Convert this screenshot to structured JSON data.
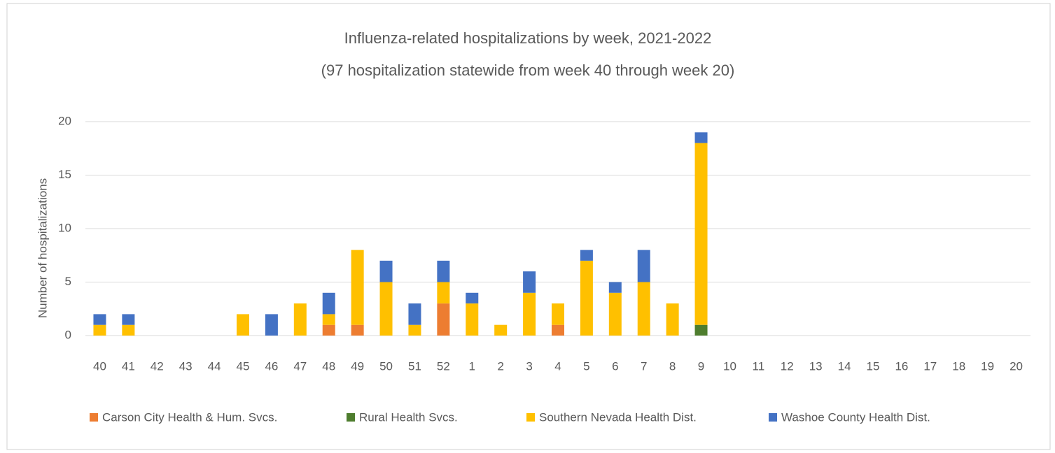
{
  "chart_data": {
    "type": "stacked-bar",
    "title": "Influenza-related hospitalizations by week, 2021-2022",
    "subtitle": "(97 hospitalization statewide from week 40 through week 20)",
    "y_label": "Number of hospitalizations",
    "categories": [
      "40",
      "41",
      "42",
      "43",
      "44",
      "45",
      "46",
      "47",
      "48",
      "49",
      "50",
      "51",
      "52",
      "1",
      "2",
      "3",
      "4",
      "5",
      "6",
      "7",
      "8",
      "9",
      "10",
      "11",
      "12",
      "13",
      "14",
      "15",
      "16",
      "17",
      "18",
      "19",
      "20"
    ],
    "series": [
      {
        "name": "Carson City Health & Hum. Svcs.",
        "color": "#ed7d31",
        "values": [
          0,
          0,
          0,
          0,
          0,
          0,
          0,
          0,
          1,
          1,
          0,
          0,
          3,
          0,
          0,
          0,
          1,
          0,
          0,
          0,
          0,
          0,
          0,
          0,
          0,
          0,
          0,
          0,
          0,
          0,
          0,
          0,
          0
        ]
      },
      {
        "name": "Rural Health Svcs.",
        "color": "#4e7d2e",
        "values": [
          0,
          0,
          0,
          0,
          0,
          0,
          0,
          0,
          0,
          0,
          0,
          0,
          0,
          0,
          0,
          0,
          0,
          0,
          0,
          0,
          0,
          1,
          0,
          0,
          0,
          0,
          0,
          0,
          0,
          0,
          0,
          0,
          0
        ]
      },
      {
        "name": "Southern Nevada Health Dist.",
        "color": "#ffc000",
        "values": [
          1,
          1,
          0,
          0,
          0,
          2,
          0,
          3,
          1,
          7,
          5,
          1,
          2,
          3,
          1,
          4,
          2,
          7,
          4,
          5,
          3,
          17,
          0,
          0,
          0,
          0,
          0,
          0,
          0,
          0,
          0,
          0,
          0
        ]
      },
      {
        "name": "Washoe County Health Dist.",
        "color": "#4472c4",
        "values": [
          1,
          1,
          0,
          0,
          0,
          0,
          2,
          0,
          2,
          0,
          2,
          2,
          2,
          1,
          0,
          2,
          0,
          1,
          1,
          3,
          0,
          1,
          0,
          0,
          0,
          0,
          0,
          0,
          0,
          0,
          0,
          0,
          0
        ]
      }
    ],
    "ylim": [
      0,
      20
    ],
    "yticks": [
      0,
      5,
      10,
      15,
      20
    ],
    "grid": true,
    "legend": "bottom"
  }
}
